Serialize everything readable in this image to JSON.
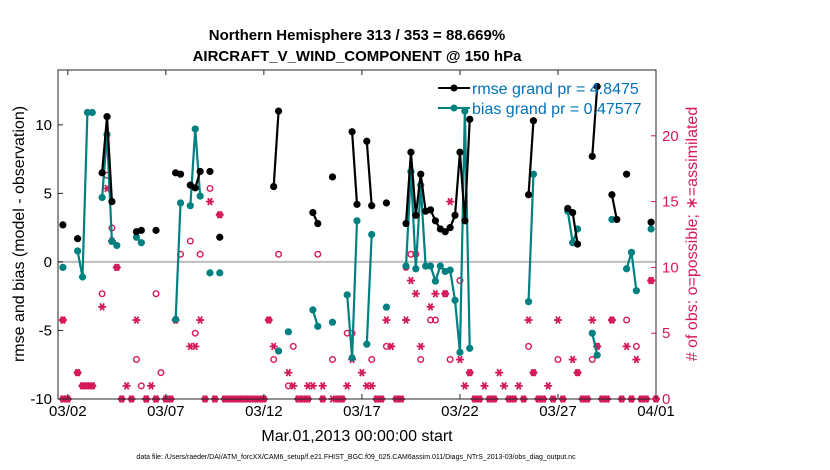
{
  "chart_data": {
    "type": "line",
    "title_line1": "Northern Hemisphere 313 / 353 = 88.669%",
    "title_line2": "AIRCRAFT_V_WIND_COMPONENT @ 150 hPa",
    "xlabel": "Mar.01,2013 00:00:00 start",
    "ylabel_left": "rmse and bias (model - observation)",
    "ylabel_right": "# of obs: o=possible; ∗=assimilated",
    "footer": "data file: /Users/raeder/DAI/ATM_forcXX/CAM6_setup/f.e21.FHIST_BGC.f09_025.CAM6assim.011/Diags_NTrS_2013-03/obs_diag_output.nc",
    "xlim": [
      1.5,
      32
    ],
    "ylim_left": [
      -10,
      14
    ],
    "ylim_right": [
      0,
      25
    ],
    "x_ticks": [
      2,
      7,
      12,
      17,
      22,
      27,
      32
    ],
    "x_tick_labels": [
      "03/02",
      "03/07",
      "03/12",
      "03/17",
      "03/22",
      "03/27",
      "04/01"
    ],
    "y_ticks_left": [
      -10,
      -5,
      0,
      5,
      10
    ],
    "y_ticks_right": [
      0,
      5,
      10,
      15,
      20
    ],
    "legend": {
      "position": "top-right",
      "entries": [
        {
          "label": "rmse grand pr = 4.8475",
          "color": "#000000"
        },
        {
          "label": "bias grand pr = 0.47577",
          "color": "#0072bd"
        }
      ]
    },
    "colors": {
      "rmse": "#000000",
      "bias": "#008080",
      "counts": "#d6185a",
      "zero_line": "#bdbdbd"
    },
    "rmse": [
      [
        1.75,
        2.7
      ],
      [
        2.5,
        1.7
      ],
      [
        3.75,
        6.5
      ],
      [
        4.0,
        10.6
      ],
      [
        4.25,
        4.4
      ],
      [
        5.5,
        2.2
      ],
      [
        5.75,
        2.3
      ],
      [
        6.5,
        2.3
      ],
      [
        7.5,
        6.5
      ],
      [
        7.75,
        6.4
      ],
      [
        8.25,
        5.6
      ],
      [
        8.5,
        5.4
      ],
      [
        8.75,
        6.6
      ],
      [
        9.25,
        6.6
      ],
      [
        9.75,
        1.8
      ],
      [
        12.5,
        5.5
      ],
      [
        12.75,
        11.0
      ],
      [
        14.5,
        3.6
      ],
      [
        14.75,
        2.8
      ],
      [
        15.5,
        6.2
      ],
      [
        16.5,
        9.5
      ],
      [
        16.75,
        4.2
      ],
      [
        17.25,
        8.8
      ],
      [
        17.5,
        4.1
      ],
      [
        18.25,
        4.3
      ],
      [
        19.25,
        2.8
      ],
      [
        19.5,
        8.0
      ],
      [
        19.75,
        3.4
      ],
      [
        20.0,
        6.4
      ],
      [
        20.25,
        3.7
      ],
      [
        20.5,
        3.8
      ],
      [
        20.75,
        3.0
      ],
      [
        21.0,
        2.4
      ],
      [
        21.25,
        2.2
      ],
      [
        21.5,
        2.5
      ],
      [
        21.75,
        3.4
      ],
      [
        22.0,
        8.0
      ],
      [
        22.25,
        3.0
      ],
      [
        22.5,
        10.4
      ],
      [
        25.5,
        4.9
      ],
      [
        25.75,
        10.3
      ],
      [
        27.5,
        3.9
      ],
      [
        27.75,
        3.6
      ],
      [
        28.0,
        1.3
      ],
      [
        28.75,
        7.7
      ],
      [
        29.0,
        12.8
      ],
      [
        29.75,
        4.9
      ],
      [
        30.0,
        3.1
      ],
      [
        30.5,
        6.4
      ],
      [
        31.75,
        2.9
      ]
    ],
    "bias": [
      [
        1.75,
        -0.4
      ],
      [
        2.5,
        0.8
      ],
      [
        2.75,
        -1.1
      ],
      [
        3.0,
        10.9
      ],
      [
        3.25,
        10.9
      ],
      [
        3.75,
        4.7
      ],
      [
        4.0,
        9.3
      ],
      [
        4.25,
        1.5
      ],
      [
        4.5,
        1.2
      ],
      [
        5.5,
        1.8
      ],
      [
        5.75,
        1.4
      ],
      [
        7.5,
        -4.2
      ],
      [
        7.75,
        4.3
      ],
      [
        8.25,
        4.1
      ],
      [
        8.5,
        9.7
      ],
      [
        8.75,
        4.8
      ],
      [
        9.25,
        -0.8
      ],
      [
        9.75,
        -0.8
      ],
      [
        12.75,
        -6.5
      ],
      [
        13.25,
        -5.1
      ],
      [
        14.5,
        -3.5
      ],
      [
        14.75,
        -4.7
      ],
      [
        15.5,
        -4.4
      ],
      [
        16.25,
        -2.4
      ],
      [
        16.5,
        -7.0
      ],
      [
        16.75,
        3.0
      ],
      [
        17.25,
        -6.0
      ],
      [
        17.5,
        2.0
      ],
      [
        18.25,
        -3.3
      ],
      [
        19.25,
        -0.3
      ],
      [
        19.5,
        6.6
      ],
      [
        19.75,
        -0.5
      ],
      [
        20.0,
        5.6
      ],
      [
        20.25,
        -0.3
      ],
      [
        20.5,
        -0.3
      ],
      [
        20.75,
        -1.4
      ],
      [
        21.0,
        -0.3
      ],
      [
        21.25,
        -0.7
      ],
      [
        21.5,
        -0.6
      ],
      [
        21.75,
        -2.8
      ],
      [
        22.0,
        -6.6
      ],
      [
        22.25,
        11.0
      ],
      [
        22.5,
        -6.3
      ],
      [
        25.5,
        -2.9
      ],
      [
        25.75,
        6.4
      ],
      [
        27.5,
        3.7
      ],
      [
        27.75,
        1.4
      ],
      [
        28.0,
        2.4
      ],
      [
        28.75,
        -5.2
      ],
      [
        29.0,
        -6.8
      ],
      [
        29.75,
        3.1
      ],
      [
        30.5,
        -0.5
      ],
      [
        30.75,
        0.7
      ],
      [
        31.0,
        -2.1
      ],
      [
        31.75,
        2.4
      ]
    ],
    "obs_possible": [
      [
        1.75,
        6
      ],
      [
        2.5,
        2
      ],
      [
        2.75,
        1
      ],
      [
        3.0,
        1
      ],
      [
        3.25,
        1
      ],
      [
        3.75,
        8
      ],
      [
        4.0,
        17
      ],
      [
        4.25,
        13
      ],
      [
        4.5,
        10
      ],
      [
        5.5,
        3
      ],
      [
        5.75,
        1
      ],
      [
        6.5,
        8
      ],
      [
        6.75,
        2
      ],
      [
        7.5,
        6
      ],
      [
        7.75,
        11
      ],
      [
        8.25,
        12
      ],
      [
        8.5,
        5
      ],
      [
        8.75,
        11
      ],
      [
        9.25,
        16
      ],
      [
        9.75,
        14
      ],
      [
        12.25,
        6
      ],
      [
        12.5,
        3
      ],
      [
        12.75,
        11
      ],
      [
        13.25,
        1
      ],
      [
        13.5,
        4
      ],
      [
        14.75,
        11
      ],
      [
        15.5,
        3
      ],
      [
        16.25,
        5
      ],
      [
        16.5,
        5
      ],
      [
        17.5,
        3
      ],
      [
        18.25,
        4
      ],
      [
        19.25,
        10
      ],
      [
        19.5,
        11
      ],
      [
        19.75,
        11
      ],
      [
        20.0,
        3
      ],
      [
        20.5,
        6
      ],
      [
        20.75,
        6
      ],
      [
        21.25,
        8
      ],
      [
        21.5,
        3
      ],
      [
        22.0,
        9
      ],
      [
        22.5,
        2
      ],
      [
        25.5,
        4
      ],
      [
        25.75,
        2
      ],
      [
        27.0,
        3
      ],
      [
        28.0,
        2
      ],
      [
        28.75,
        3
      ],
      [
        29.0,
        4
      ],
      [
        29.75,
        6
      ],
      [
        30.5,
        6
      ],
      [
        31.0,
        4
      ],
      [
        31.75,
        9
      ]
    ],
    "obs_assimilated": [
      [
        1.75,
        6
      ],
      [
        2.5,
        2
      ],
      [
        2.75,
        1
      ],
      [
        3.0,
        1
      ],
      [
        3.25,
        1
      ],
      [
        3.75,
        7
      ],
      [
        4.0,
        16
      ],
      [
        4.25,
        12
      ],
      [
        4.5,
        10
      ],
      [
        5.0,
        1
      ],
      [
        5.5,
        6
      ],
      [
        6.0,
        0
      ],
      [
        6.25,
        1
      ],
      [
        6.5,
        0
      ],
      [
        7.5,
        6
      ],
      [
        8.25,
        4
      ],
      [
        8.5,
        4
      ],
      [
        8.75,
        6
      ],
      [
        9.25,
        15
      ],
      [
        9.75,
        14
      ],
      [
        12.25,
        6
      ],
      [
        12.5,
        4
      ],
      [
        13.25,
        2
      ],
      [
        13.5,
        1
      ],
      [
        14.25,
        1
      ],
      [
        14.5,
        1
      ],
      [
        15.0,
        1
      ],
      [
        15.5,
        0
      ],
      [
        16.25,
        1
      ],
      [
        16.5,
        3
      ],
      [
        17.0,
        2
      ],
      [
        17.25,
        1
      ],
      [
        17.5,
        1
      ],
      [
        18.25,
        6
      ],
      [
        18.5,
        4
      ],
      [
        19.25,
        6
      ],
      [
        19.5,
        9
      ],
      [
        19.75,
        8
      ],
      [
        20.0,
        4
      ],
      [
        20.5,
        7
      ],
      [
        20.75,
        8
      ],
      [
        21.25,
        8
      ],
      [
        21.5,
        15
      ],
      [
        22.0,
        3
      ],
      [
        22.25,
        1
      ],
      [
        22.5,
        2
      ],
      [
        23.25,
        1
      ],
      [
        24.0,
        2
      ],
      [
        24.25,
        1
      ],
      [
        25.0,
        1
      ],
      [
        25.5,
        6
      ],
      [
        25.75,
        2
      ],
      [
        26.5,
        1
      ],
      [
        27.0,
        6
      ],
      [
        27.75,
        3
      ],
      [
        28.0,
        2
      ],
      [
        28.75,
        6
      ],
      [
        29.0,
        4
      ],
      [
        29.75,
        6
      ],
      [
        30.5,
        4
      ],
      [
        31.0,
        3
      ],
      [
        31.75,
        9
      ]
    ],
    "obs_zero_x": [
      1.75,
      2.0,
      4.75,
      5.25,
      6.0,
      6.5,
      7.0,
      7.25,
      9.0,
      9.5,
      10.0,
      10.25,
      10.5,
      10.75,
      11.0,
      11.25,
      11.5,
      11.75,
      12.0,
      13.75,
      14.0,
      14.25,
      15.0,
      15.75,
      16.0,
      17.75,
      18.0,
      18.75,
      19.0,
      22.75,
      23.0,
      23.5,
      23.75,
      24.5,
      24.75,
      25.25,
      26.0,
      26.25,
      26.75,
      27.25,
      28.25,
      28.5,
      29.25,
      29.5,
      30.25,
      30.75,
      31.25,
      31.5,
      32.0
    ]
  }
}
